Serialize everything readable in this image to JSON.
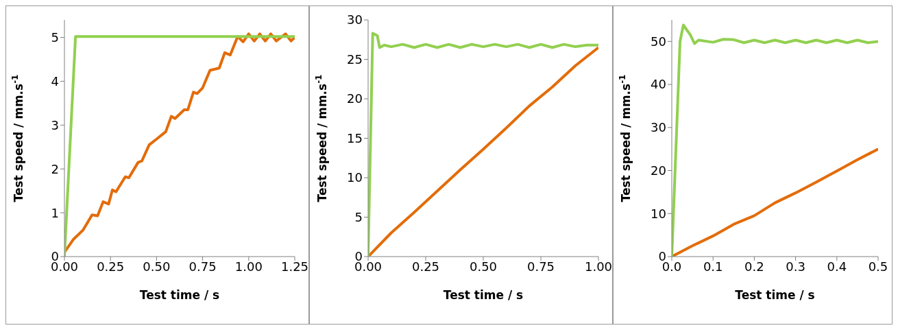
{
  "chart_data": [
    {
      "type": "line",
      "xlabel": "Test time / s",
      "ylabel": "Test speed / mm.s$^{-1}$",
      "xlim": [
        0,
        1.25
      ],
      "xticks": [
        {
          "value": 0,
          "label": "0.00"
        },
        {
          "value": 0.25,
          "label": "0.25"
        },
        {
          "value": 0.5,
          "label": "0.50"
        },
        {
          "value": 0.75,
          "label": "0.75"
        },
        {
          "value": 1,
          "label": "1.00"
        },
        {
          "value": 1.25,
          "label": "1.25"
        }
      ],
      "ylim": [
        0,
        5.4
      ],
      "yticks": [
        0,
        1,
        2,
        3,
        4,
        5
      ],
      "grid": false,
      "marker": "none",
      "line_style": "solid",
      "series": [
        {
          "color": "#e36c0a",
          "x": [
            0,
            0.05,
            0.1,
            0.15,
            0.18,
            0.21,
            0.24,
            0.26,
            0.28,
            0.33,
            0.35,
            0.4,
            0.42,
            0.46,
            0.5,
            0.55,
            0.58,
            0.6,
            0.65,
            0.67,
            0.7,
            0.72,
            0.75,
            0.79,
            0.84,
            0.87,
            0.9,
            0.94,
            0.97,
            1.0,
            1.03,
            1.06,
            1.09,
            1.12,
            1.15,
            1.2,
            1.23,
            1.25
          ],
          "values": [
            0.1,
            0.4,
            0.6,
            0.95,
            0.93,
            1.25,
            1.2,
            1.52,
            1.48,
            1.82,
            1.8,
            2.15,
            2.18,
            2.55,
            2.68,
            2.85,
            3.2,
            3.15,
            3.35,
            3.35,
            3.75,
            3.72,
            3.85,
            4.25,
            4.3,
            4.65,
            4.6,
            5.02,
            4.9,
            5.08,
            4.92,
            5.08,
            4.92,
            5.08,
            4.92,
            5.08,
            4.92,
            5.0
          ]
        },
        {
          "color": "#92d050",
          "x": [
            0,
            0.06,
            1.25
          ],
          "values": [
            0,
            5.02,
            5.02
          ]
        }
      ]
    },
    {
      "type": "line",
      "xlabel": "Test time / s",
      "ylabel": "Test speed / mm.s$^{-1}$",
      "xlim": [
        0,
        1
      ],
      "xticks": [
        {
          "value": 0,
          "label": "0.00"
        },
        {
          "value": 0.25,
          "label": "0.25"
        },
        {
          "value": 0.5,
          "label": "0.50"
        },
        {
          "value": 0.75,
          "label": "0.75"
        },
        {
          "value": 1,
          "label": "1.00"
        }
      ],
      "ylim": [
        0,
        30
      ],
      "yticks": [
        0,
        5,
        10,
        15,
        20,
        25,
        30
      ],
      "grid": false,
      "marker": "none",
      "line_style": "solid",
      "series": [
        {
          "color": "#e36c0a",
          "x": [
            0,
            0.1,
            0.2,
            0.3,
            0.4,
            0.5,
            0.6,
            0.7,
            0.8,
            0.9,
            1.0
          ],
          "values": [
            0,
            3,
            5.6,
            8.3,
            11,
            13.6,
            16.3,
            19.1,
            21.5,
            24.2,
            26.5
          ]
        },
        {
          "color": "#92d050",
          "x": [
            0,
            0.02,
            0.04,
            0.05,
            0.07,
            0.1,
            0.15,
            0.2,
            0.25,
            0.3,
            0.35,
            0.4,
            0.45,
            0.5,
            0.55,
            0.6,
            0.65,
            0.7,
            0.75,
            0.8,
            0.85,
            0.9,
            0.95,
            1.0
          ],
          "values": [
            0,
            28.3,
            28,
            26.5,
            26.8,
            26.6,
            26.9,
            26.5,
            26.9,
            26.5,
            26.9,
            26.5,
            26.9,
            26.6,
            26.9,
            26.6,
            26.9,
            26.5,
            26.9,
            26.5,
            26.9,
            26.6,
            26.8,
            26.8
          ]
        }
      ]
    },
    {
      "type": "line",
      "xlabel": "Test time / s",
      "ylabel": "Test speed / mm.s$^{-1}$",
      "xlim": [
        0,
        0.5
      ],
      "xticks": [
        {
          "value": 0,
          "label": "0.0"
        },
        0.1,
        0.2,
        0.3,
        0.4,
        0.5
      ],
      "ylim": [
        0,
        55
      ],
      "yticks": [
        0,
        10,
        20,
        30,
        40,
        50
      ],
      "grid": false,
      "marker": "none",
      "line_style": "solid",
      "series": [
        {
          "color": "#e36c0a",
          "x": [
            0,
            0.05,
            0.1,
            0.15,
            0.2,
            0.25,
            0.3,
            0.35,
            0.4,
            0.45,
            0.5
          ],
          "values": [
            0,
            2.5,
            4.8,
            7.5,
            9.5,
            12.5,
            14.8,
            17.3,
            19.9,
            22.5,
            25
          ]
        },
        {
          "color": "#92d050",
          "x": [
            0,
            0.02,
            0.028,
            0.045,
            0.055,
            0.065,
            0.1,
            0.125,
            0.15,
            0.175,
            0.2,
            0.225,
            0.25,
            0.275,
            0.3,
            0.325,
            0.35,
            0.375,
            0.4,
            0.425,
            0.45,
            0.475,
            0.5
          ],
          "values": [
            0,
            50,
            53.8,
            51.5,
            49.5,
            50.3,
            49.8,
            50.5,
            50.4,
            49.7,
            50.3,
            49.7,
            50.3,
            49.7,
            50.3,
            49.7,
            50.3,
            49.7,
            50.3,
            49.7,
            50.3,
            49.7,
            50
          ]
        }
      ]
    }
  ]
}
